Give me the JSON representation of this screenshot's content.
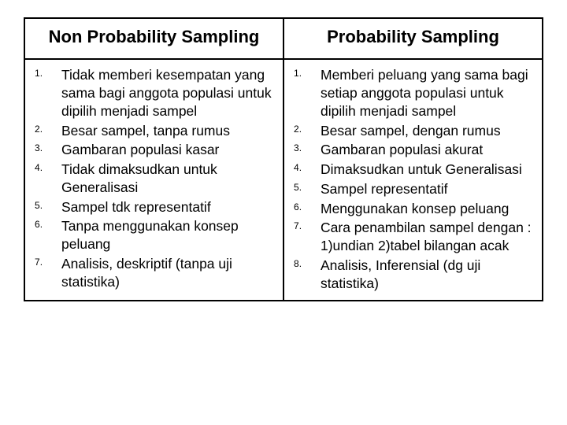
{
  "columns": [
    {
      "header": "Non Probability Sampling",
      "items": [
        "Tidak memberi kesempatan yang sama bagi anggota populasi untuk dipilih menjadi sampel",
        "Besar sampel, tanpa rumus",
        "Gambaran populasi kasar",
        "Tidak dimaksudkan untuk Generalisasi",
        "Sampel tdk representatif",
        "Tanpa menggunakan konsep peluang",
        "Analisis, deskriptif (tanpa uji statistika)"
      ]
    },
    {
      "header": "Probability Sampling",
      "items": [
        "Memberi peluang yang sama bagi setiap anggota populasi untuk dipilih menjadi sampel",
        "Besar sampel, dengan rumus",
        "Gambaran populasi akurat",
        "Dimaksudkan untuk Generalisasi",
        "Sampel representatif",
        "Menggunakan konsep peluang",
        "Cara penambilan sampel dengan : 1)undian 2)tabel bilangan acak",
        "Analisis, Inferensial (dg uji statistika)"
      ]
    }
  ]
}
